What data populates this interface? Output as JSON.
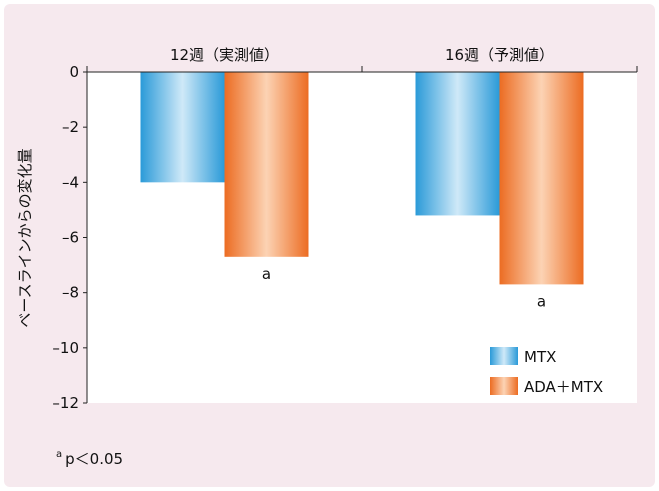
{
  "chart_data": {
    "type": "bar",
    "categories": [
      "12週（実測値）",
      "16週（予測値）"
    ],
    "series": [
      {
        "name": "MTX",
        "values": [
          -4.0,
          -5.2
        ]
      },
      {
        "name": "ADA＋MTX",
        "values": [
          -6.7,
          -7.7
        ]
      }
    ],
    "annotations": [
      "a",
      "a"
    ],
    "ylabel": "ベースラインからの変化量",
    "ylim": [
      -12,
      0
    ],
    "yticks": [
      0,
      -2,
      -4,
      -6,
      -8,
      -10,
      -12
    ],
    "ytick_labels": [
      "0",
      "–2",
      "–4",
      "–6",
      "–8",
      "–10",
      "–12"
    ],
    "legend_position": "bottom-right",
    "footnote": "p＜0.05",
    "footnote_mark": "a"
  },
  "colors": {
    "frame_bg": "#f6e9ee",
    "plot_bg": "#ffffff",
    "mtx_dark": "#2a9ad8",
    "mtx_light": "#cfe9f8",
    "ada_dark": "#ec6c22",
    "ada_light": "#fcd3b4"
  }
}
